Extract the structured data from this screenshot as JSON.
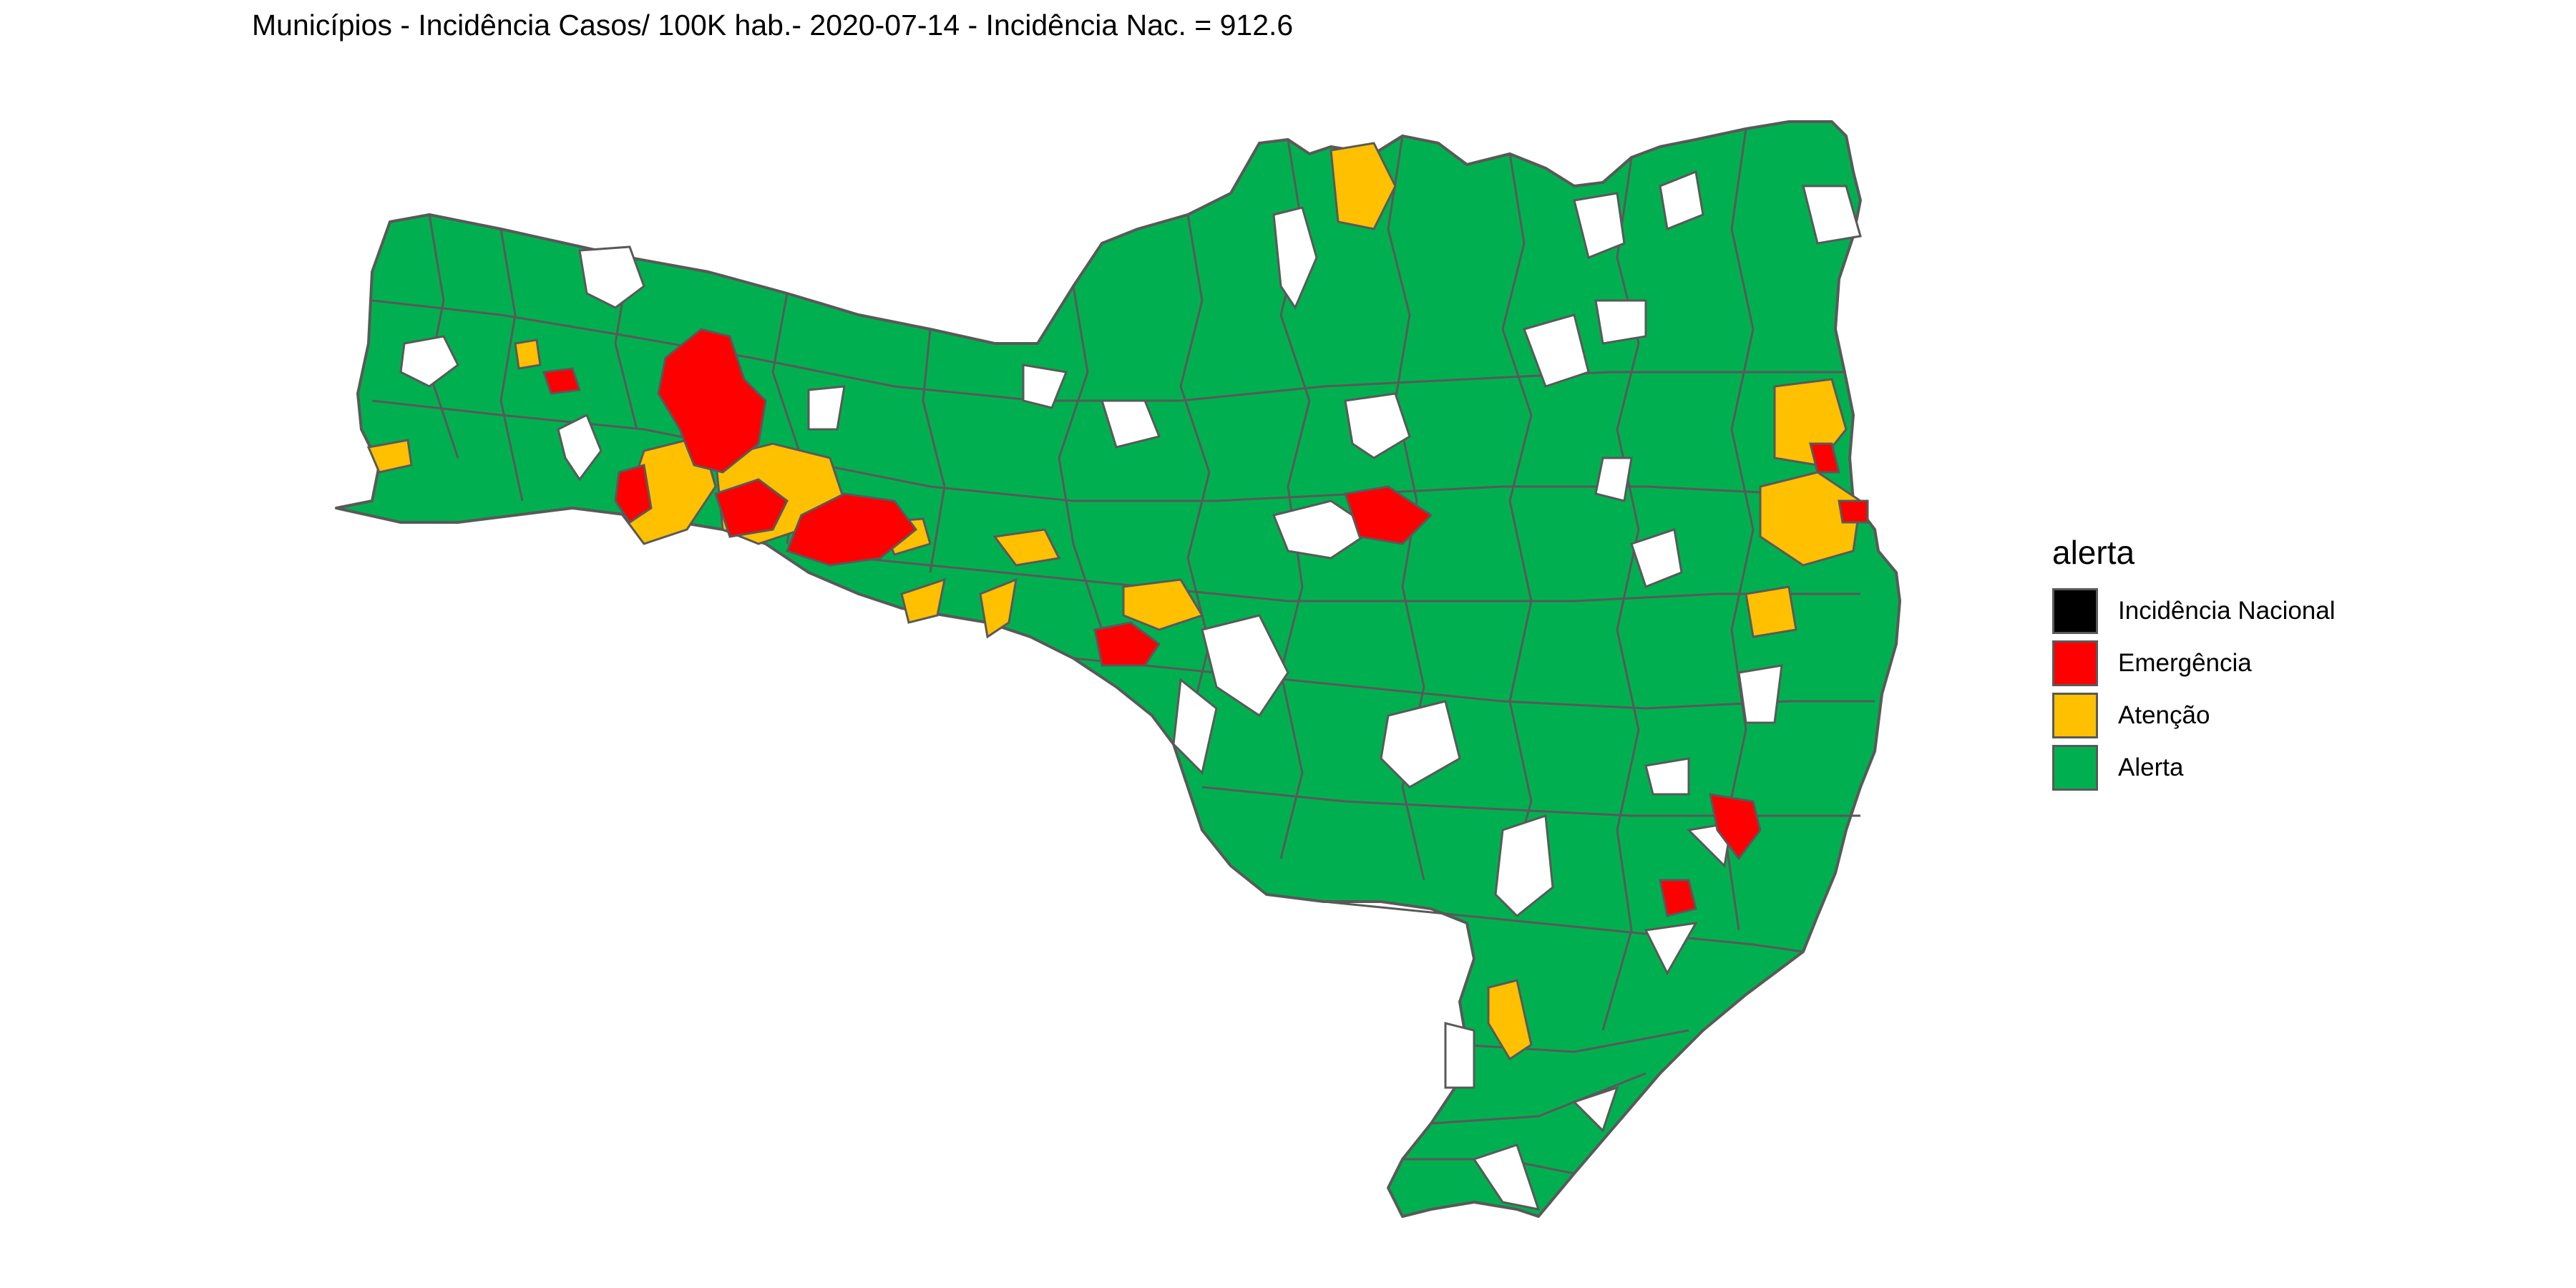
{
  "title": "Municípios - Incidência Casos/ 100K hab.-  2020-07-14  - Incidência Nac. = 912.6",
  "legend": {
    "title": "alerta",
    "items": [
      {
        "label": "Incidência Nacional",
        "color": "#000000"
      },
      {
        "label": "Emergência",
        "color": "#ff0000"
      },
      {
        "label": "Atenção",
        "color": "#ffc000"
      },
      {
        "label": "Alerta",
        "color": "#00b050"
      }
    ]
  },
  "map": {
    "region": "Santa Catarina",
    "border_color": "#595959",
    "no_data_color": "#ffffff"
  }
}
